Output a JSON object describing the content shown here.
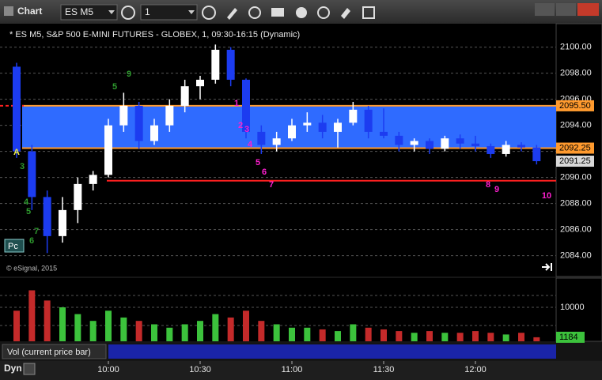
{
  "toolbar": {
    "title": "Chart",
    "symbol": "ES M5",
    "interval": "1"
  },
  "chart_data": {
    "type": "candlestick",
    "title": "* ES M5, S&P 500 E-MINI FUTURES - GLOBEX, 1, 09:30-16:15 (Dynamic)",
    "watermark": "© eSignal, 2015",
    "categories": [
      null,
      null,
      null,
      null,
      null,
      null,
      "10:00",
      null,
      null,
      null,
      null,
      null,
      "10:30",
      null,
      null,
      null,
      null,
      null,
      "11:00",
      null,
      null,
      null,
      null,
      null,
      "11:30",
      null,
      null,
      null,
      null,
      null,
      "12:00",
      null,
      null,
      null,
      null
    ],
    "open": [
      2098.5,
      2092,
      2088.5,
      2085.5,
      2087.5,
      2089.5,
      2090.2,
      2094,
      2095.5,
      2092.8,
      2094,
      2095.5,
      2097,
      2097.5,
      2099.8,
      2097.5,
      2093.5,
      2092.5,
      2093,
      2094,
      2094.2,
      2093.5,
      2094.2,
      2095.2,
      2093.5,
      2093.2,
      2092.5,
      2092.8,
      2092.2,
      2093,
      2092.6,
      2092.4,
      2091.8,
      2092.5,
      2092.3
    ],
    "high": [
      2098.8,
      2092.5,
      2089,
      2088.5,
      2090,
      2090.5,
      2094.5,
      2096.5,
      2095.8,
      2094.5,
      2096,
      2097.5,
      2097.8,
      2100.2,
      2100,
      2097.6,
      2094,
      2093.5,
      2094.5,
      2095,
      2094.8,
      2094.5,
      2095.8,
      2095.5,
      2095.3,
      2093.5,
      2093,
      2093,
      2093.2,
      2093.3,
      2093.2,
      2092.6,
      2092.8,
      2092.7,
      2092.5
    ],
    "low": [
      2091.5,
      2087.5,
      2084.2,
      2085,
      2086.5,
      2089,
      2090,
      2093.5,
      2092.2,
      2092.5,
      2093.5,
      2095,
      2096,
      2097.2,
      2097,
      2093,
      2091.8,
      2092,
      2092.8,
      2093.5,
      2093,
      2092.3,
      2094,
      2093,
      2093,
      2092,
      2092,
      2091.8,
      2092,
      2092.2,
      2092,
      2091.5,
      2091.6,
      2092,
      2091
    ],
    "close": [
      2092,
      2088.5,
      2085.5,
      2087.5,
      2089.5,
      2090.2,
      2094,
      2095.5,
      2092.8,
      2094,
      2095.5,
      2097,
      2097.5,
      2099.8,
      2097.5,
      2093.5,
      2092.5,
      2093,
      2094,
      2094.2,
      2093.5,
      2094.2,
      2095.2,
      2093.5,
      2093.2,
      2092.5,
      2092.8,
      2092.2,
      2093,
      2092.6,
      2092.4,
      2091.8,
      2092.5,
      2092.3,
      2091.25
    ],
    "up_color": "#ffffff",
    "down_color": "#1c3cf0",
    "ylim": [
      2082.4,
      2101.8
    ],
    "yticks": [
      {
        "value": 2084,
        "label": "2084.00"
      },
      {
        "value": 2086,
        "label": "2086.00"
      },
      {
        "value": 2088,
        "label": "2088.00"
      },
      {
        "value": 2090,
        "label": "2090.00"
      },
      {
        "value": 2092,
        "label": "2092.00"
      },
      {
        "value": 2094,
        "label": "2094.00"
      },
      {
        "value": 2096,
        "label": "2096.00"
      },
      {
        "value": 2098,
        "label": "2098.00"
      },
      {
        "value": 2100,
        "label": "2100.00"
      }
    ],
    "grid": true,
    "levels": {
      "upper": {
        "value": 2095.5,
        "label": "2095.50"
      },
      "lower": 2092.25,
      "support": 2089.75,
      "last": 2091.25,
      "band_color": "#2f6bff",
      "level_color": "#ff9a2e",
      "support_color": "#ff2020"
    },
    "annotations": [
      {
        "text": "1",
        "color": "#ff1fd0"
      },
      {
        "text": "2",
        "color": "#ff1fd0"
      },
      {
        "text": "3",
        "color": "#ff1fd0"
      },
      {
        "text": "4",
        "color": "#ff1fd0"
      },
      {
        "text": "5",
        "color": "#ff1fd0"
      },
      {
        "text": "6",
        "color": "#ff1fd0"
      },
      {
        "text": "7",
        "color": "#ff1fd0"
      },
      {
        "text": "8",
        "color": "#ff1fd0"
      },
      {
        "text": "9",
        "color": "#ff1fd0"
      },
      {
        "text": "10",
        "color": "#ff1fd0"
      },
      {
        "text": "3",
        "color": "#2e9a2e"
      },
      {
        "text": "4",
        "color": "#2e9a2e"
      },
      {
        "text": "5",
        "color": "#2e9a2e"
      },
      {
        "text": "7",
        "color": "#2e9a2e"
      },
      {
        "text": "6",
        "color": "#2e9a2e"
      },
      {
        "text": "5",
        "color": "#2e9a2e"
      },
      {
        "text": "9",
        "color": "#2e9a2e"
      },
      {
        "text": "A",
        "color": "#e8e84a"
      }
    ],
    "volume": {
      "label": "Vol (current price bar)",
      "values": [
        9000,
        15000,
        12000,
        10000,
        8000,
        6000,
        9000,
        7000,
        6000,
        5000,
        4000,
        5000,
        6000,
        8000,
        7000,
        9000,
        6000,
        5000,
        4000,
        4000,
        3500,
        3000,
        5000,
        4000,
        3500,
        3000,
        2500,
        3000,
        2500,
        2500,
        3000,
        2500,
        2000,
        2500,
        1184
      ],
      "up_color": "#3cc23c",
      "down_color": "#c42a2a",
      "ylim": [
        0,
        18600
      ],
      "yticks": [
        10000
      ]
    }
  },
  "footer": {
    "mode": "Dyn",
    "badge": "Pc"
  }
}
